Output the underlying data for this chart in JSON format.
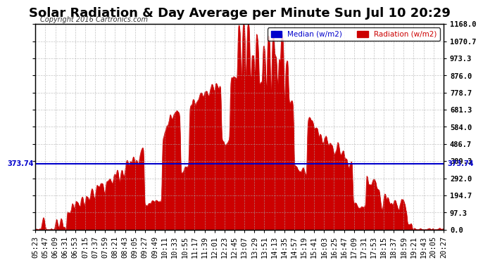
{
  "title": "Solar Radiation & Day Average per Minute Sun Jul 10 20:29",
  "copyright": "Copyright 2016 Cartronics.com",
  "median_value": 373.74,
  "y_max": 1168.0,
  "y_min": 0.0,
  "y_ticks": [
    0.0,
    97.3,
    194.7,
    292.0,
    389.3,
    486.7,
    584.0,
    681.3,
    778.7,
    876.0,
    973.3,
    1070.7,
    1168.0
  ],
  "legend_median_label": "Median (w/m2)",
  "legend_radiation_label": "Radiation (w/m2)",
  "median_color": "#0000cc",
  "radiation_fill_color": "#cc0000",
  "radiation_line_color": "#cc0000",
  "background_color": "#ffffff",
  "grid_color": "#aaaaaa",
  "title_fontsize": 13,
  "axis_fontsize": 7.5,
  "x_tick_labels": [
    "05:23",
    "05:47",
    "06:09",
    "06:31",
    "06:53",
    "07:15",
    "07:37",
    "07:59",
    "08:21",
    "08:43",
    "09:05",
    "09:27",
    "09:49",
    "10:11",
    "10:33",
    "10:55",
    "11:17",
    "11:39",
    "12:01",
    "12:23",
    "12:45",
    "13:07",
    "13:29",
    "13:51",
    "14:13",
    "14:35",
    "14:57",
    "15:19",
    "15:41",
    "16:03",
    "16:25",
    "16:47",
    "17:09",
    "17:31",
    "17:53",
    "18:15",
    "18:37",
    "18:59",
    "19:21",
    "19:43",
    "20:05",
    "20:27"
  ]
}
